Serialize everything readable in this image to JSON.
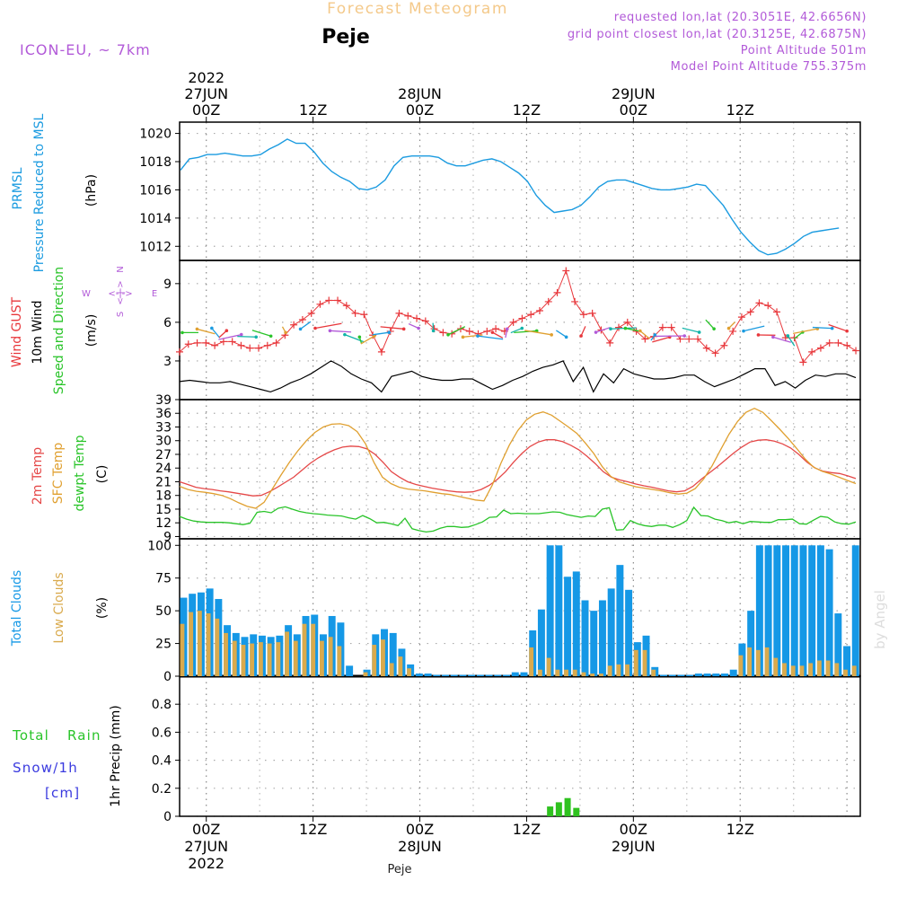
{
  "header": {
    "title": "Forecast Meteogram",
    "location": "Peje",
    "model": "ICON-EU, ~ 7km",
    "requested": "requested lon,lat (20.3051E, 42.6656N)",
    "grid_point": "grid point closest lon,lat (20.3125E, 42.6875N)",
    "point_altitude": "Point Altitude 501m",
    "model_altitude": "Model Point Altitude 755.375m"
  },
  "colors": {
    "pressure": "#1b9be0",
    "gust": "#e8373b",
    "wind": "#000000",
    "temp": "#e54848",
    "sfc": "#e0a030",
    "dewpt": "#29c429",
    "total_cloud": "#1598e6",
    "low_cloud": "#d9aa4d",
    "rain": "#2fc21f",
    "snow": "#3a3adf",
    "title": "#f4c98a",
    "meta": "#b25ad8",
    "grid": "#aaaaaa"
  },
  "time_axis": {
    "top_labels": [
      {
        "t": 3,
        "l1": "2022",
        "l2": "27JUN",
        "l3": "00Z"
      },
      {
        "t": 15,
        "l1": "",
        "l2": "",
        "l3": "12Z"
      },
      {
        "t": 27,
        "l1": "",
        "l2": "28JUN",
        "l3": "00Z"
      },
      {
        "t": 39,
        "l1": "",
        "l2": "",
        "l3": "12Z"
      },
      {
        "t": 51,
        "l1": "",
        "l2": "29JUN",
        "l3": "00Z"
      },
      {
        "t": 63,
        "l1": "",
        "l2": "",
        "l3": "12Z"
      }
    ],
    "bottom_labels": [
      {
        "t": 3,
        "l1": "00Z",
        "l2": "27JUN",
        "l3": "2022"
      },
      {
        "t": 15,
        "l1": "12Z",
        "l2": "",
        "l3": ""
      },
      {
        "t": 27,
        "l1": "00Z",
        "l2": "28JUN",
        "l3": ""
      },
      {
        "t": 39,
        "l1": "12Z",
        "l2": "",
        "l3": ""
      },
      {
        "t": 51,
        "l1": "00Z",
        "l2": "29JUN",
        "l3": ""
      },
      {
        "t": 63,
        "l1": "12Z",
        "l2": "",
        "l3": ""
      }
    ],
    "footer": "Peje"
  },
  "panels": {
    "pressure": {
      "label1": "PRMSL",
      "label2": "Pressure Reduced to MSL",
      "unit": "(hPa)"
    },
    "wind": {
      "label_gust": "Wind GUST",
      "label_wind": "10m Wind",
      "label_dir": "Speed and Direction",
      "unit": "(m/s)",
      "compass_n": "N",
      "compass_s": "S",
      "compass_w": "W",
      "compass_e": "E",
      "compass_mid": "<-|->"
    },
    "temp": {
      "label_t2m": "2m Temp",
      "label_sfc": "SFC Temp",
      "label_dew": "dewpt Temp",
      "unit": "(C)"
    },
    "clouds": {
      "label_total": "Total Clouds",
      "label_low": "Low Clouds",
      "unit": "(%)"
    },
    "precip": {
      "label_rain": "Total Rain",
      "label_snow": "Snow/1h",
      "label_cm": "[cm]",
      "unit": "1hr Precip (mm)"
    }
  },
  "watermark": "by Angel",
  "chart_data": [
    {
      "type": "line",
      "title": "PRMSL Pressure Reduced to MSL",
      "ylabel": "(hPa)",
      "x_hours_from_26JUN21Z": [
        0,
        1,
        2,
        3,
        4,
        5,
        6,
        7,
        8,
        9,
        10,
        11,
        12,
        13,
        14,
        15,
        16,
        17,
        18,
        19,
        20,
        21,
        22,
        23,
        24,
        25,
        26,
        27,
        28,
        29,
        30,
        31,
        32,
        33,
        34,
        35,
        36,
        37,
        38,
        39,
        40,
        41,
        42,
        43,
        44,
        45,
        46,
        47,
        48,
        49,
        50,
        51,
        52,
        53,
        54,
        55,
        56,
        57,
        58,
        59,
        60,
        61,
        62,
        63,
        64,
        65,
        66,
        67,
        68,
        69,
        70,
        71,
        72,
        73,
        74,
        75,
        76
      ],
      "ylim": [
        1011,
        1020.8
      ],
      "yticks": [
        1012,
        1014,
        1016,
        1018,
        1020
      ],
      "series": [
        {
          "values": [
            1017.4,
            1018.2,
            1018.3,
            1018.5,
            1018.5,
            1018.6,
            1018.5,
            1018.4,
            1018.4,
            1018.5,
            1018.9,
            1019.2,
            1019.6,
            1019.3,
            1019.3,
            1018.7,
            1017.9,
            1017.3,
            1016.9,
            1016.6,
            1016.1,
            1016.0,
            1016.2,
            1016.7,
            1017.7,
            1018.3,
            1018.4,
            1018.4,
            1018.4,
            1018.3,
            1017.9,
            1017.7,
            1017.7,
            1017.9,
            1018.1,
            1018.2,
            1018.0,
            1017.6,
            1017.2,
            1016.6,
            1015.6,
            1014.9,
            1014.4,
            1014.5,
            1014.6,
            1014.9,
            1015.5,
            1016.2,
            1016.6,
            1016.7,
            1016.7,
            1016.5,
            1016.3,
            1016.1,
            1016.0,
            1016.0,
            1016.1,
            1016.2,
            1016.4,
            1016.3,
            1015.6,
            1014.9,
            1013.9,
            1013.0,
            1012.3,
            1011.7,
            1011.4,
            1011.5,
            1011.8,
            1012.2,
            1012.7,
            1013.0,
            1013.1,
            1013.2,
            1013.3
          ]
        }
      ]
    },
    {
      "type": "line",
      "title": "Wind GUST / 10m Wind Speed and Direction",
      "ylabel": "(m/s)",
      "ylim": [
        0,
        10.8
      ],
      "yticks": [
        3,
        6,
        9
      ],
      "series": [
        {
          "name": "Wind GUST",
          "values": [
            3.7,
            4.3,
            4.4,
            4.4,
            4.2,
            4.5,
            4.5,
            4.2,
            4.0,
            4.0,
            4.2,
            4.4,
            5.0,
            5.8,
            6.2,
            6.7,
            7.4,
            7.7,
            7.7,
            7.3,
            6.7,
            6.6,
            5.0,
            3.7,
            5.3,
            6.7,
            6.5,
            6.3,
            6.1,
            5.5,
            5.2,
            5.1,
            5.5,
            5.3,
            5.1,
            5.3,
            5.5,
            5.3,
            6.0,
            6.3,
            6.6,
            6.9,
            7.6,
            8.3,
            10.0,
            7.6,
            6.6,
            6.7,
            5.4,
            4.4,
            5.6,
            6.0,
            5.3,
            4.7,
            4.9,
            5.6,
            5.6,
            4.7,
            4.7,
            4.7,
            4.0,
            3.6,
            4.2,
            5.3,
            6.4,
            6.8,
            7.5,
            7.3,
            6.8,
            4.8,
            4.8,
            2.9,
            3.7,
            4.0,
            4.4,
            4.4,
            4.2,
            3.8
          ]
        },
        {
          "name": "10m Wind",
          "values": [
            1.4,
            1.5,
            1.4,
            1.3,
            1.3,
            1.4,
            1.2,
            1.0,
            0.8,
            0.6,
            0.9,
            1.3,
            1.6,
            2.0,
            2.5,
            3.0,
            2.6,
            2.0,
            1.6,
            1.3,
            0.6,
            1.8,
            2.0,
            2.2,
            1.8,
            1.6,
            1.5,
            1.5,
            1.6,
            1.6,
            1.2,
            0.8,
            1.1,
            1.5,
            1.8,
            2.2,
            2.5,
            2.7,
            3.0,
            1.4,
            2.5,
            0.6,
            2.0,
            1.3,
            2.4,
            2.0,
            1.8,
            1.6,
            1.6,
            1.7,
            1.9,
            1.9,
            1.4,
            1.0,
            1.3,
            1.6,
            2.0,
            2.4,
            2.4,
            1.1,
            1.4,
            0.9,
            1.5,
            1.9,
            1.8,
            2.0,
            2.0,
            1.7
          ]
        }
      ]
    },
    {
      "type": "line",
      "title": "2m Temp / SFC Temp / dewpt Temp",
      "ylabel": "(C)",
      "ylim": [
        8.5,
        39
      ],
      "yticks": [
        9,
        12,
        15,
        18,
        21,
        24,
        27,
        30,
        33,
        36,
        39
      ],
      "series": [
        {
          "name": "2m Temp",
          "values": [
            21.0,
            20.4,
            19.8,
            19.5,
            19.3,
            19.0,
            18.8,
            18.5,
            18.2,
            17.9,
            18.0,
            18.8,
            19.8,
            20.9,
            22.0,
            23.5,
            25.0,
            26.2,
            27.2,
            28.0,
            28.6,
            28.8,
            28.7,
            28.2,
            27.0,
            25.2,
            23.2,
            22.0,
            21.0,
            20.4,
            20.0,
            19.6,
            19.3,
            19.0,
            18.8,
            18.7,
            18.8,
            19.3,
            20.2,
            21.5,
            23.2,
            25.3,
            27.2,
            28.7,
            29.7,
            30.2,
            30.2,
            29.8,
            29.0,
            28.0,
            26.6,
            25.0,
            23.2,
            22.0,
            21.4,
            21.0,
            20.5,
            20.1,
            19.8,
            19.4,
            19.0,
            18.8,
            19.0,
            20.0,
            21.5,
            22.9,
            24.3,
            25.8,
            27.3,
            28.6,
            29.7,
            30.1,
            30.2,
            29.9,
            29.3,
            28.4,
            27.0,
            25.3,
            24.0,
            23.3,
            23.0,
            22.8,
            22.3,
            21.7
          ]
        },
        {
          "name": "SFC Temp",
          "values": [
            20.0,
            19.3,
            18.9,
            18.7,
            18.4,
            18.0,
            17.3,
            16.4,
            15.6,
            15.2,
            16.5,
            19.5,
            22.5,
            25.3,
            27.8,
            30.0,
            31.8,
            33.0,
            33.6,
            33.7,
            33.3,
            32.0,
            29.3,
            25.2,
            22.0,
            20.6,
            19.8,
            19.4,
            19.2,
            19.0,
            18.7,
            18.4,
            18.2,
            17.8,
            17.4,
            17.0,
            16.8,
            20.3,
            25.0,
            29.0,
            32.2,
            34.5,
            35.8,
            36.3,
            35.6,
            34.3,
            33.0,
            31.6,
            29.5,
            27.2,
            24.3,
            22.2,
            21.0,
            20.4,
            19.9,
            19.6,
            19.3,
            19.0,
            18.6,
            18.3,
            18.5,
            19.5,
            21.6,
            24.5,
            28.0,
            31.4,
            34.2,
            36.2,
            37.1,
            36.2,
            34.4,
            32.5,
            30.5,
            28.3,
            26.0,
            24.2,
            23.3,
            22.7,
            22.0,
            21.3,
            20.6
          ]
        },
        {
          "name": "dewpt Temp",
          "values": [
            13.4,
            12.8,
            12.4,
            12.2,
            12.1,
            12.1,
            12.1,
            12.0,
            11.8,
            11.6,
            11.9,
            14.3,
            14.5,
            14.2,
            15.2,
            15.5,
            15.0,
            14.5,
            14.2,
            14.0,
            13.9,
            13.7,
            13.6,
            13.5,
            13.1,
            12.8,
            13.6,
            12.9,
            12.0,
            12.1,
            11.8,
            11.4,
            13.0,
            10.7,
            10.3,
            10.0,
            10.2,
            10.8,
            11.2,
            11.2,
            11.0,
            11.1,
            11.6,
            12.2,
            13.2,
            13.3,
            14.8,
            14.0,
            14.1,
            14.0,
            14.0,
            14.0,
            14.2,
            14.4,
            14.3,
            13.8,
            13.5,
            13.2,
            13.5,
            13.4,
            15.0,
            15.3,
            10.4,
            10.5,
            12.5,
            11.8,
            11.4,
            11.2,
            11.5,
            11.5,
            11.0,
            11.6,
            12.5,
            15.4,
            13.6,
            13.5,
            12.8,
            12.5,
            12.0,
            12.3,
            11.8,
            12.3,
            12.2,
            12.1,
            12.1,
            12.7,
            12.7,
            12.8,
            11.8,
            11.7,
            12.6,
            13.4,
            13.2,
            12.2,
            11.8,
            11.7,
            12.2
          ]
        }
      ]
    },
    {
      "type": "bar",
      "title": "Total Clouds / Low Clouds",
      "ylabel": "(%)",
      "ylim": [
        0,
        105
      ],
      "yticks": [
        0,
        25,
        50,
        75,
        100
      ],
      "series": [
        {
          "name": "Total Clouds",
          "values": [
            60,
            63,
            64,
            67,
            59,
            39,
            33,
            30,
            32,
            31,
            30,
            31,
            39,
            32,
            46,
            47,
            32,
            46,
            41,
            8,
            0,
            5,
            32,
            36,
            33,
            21,
            9,
            2,
            2,
            1,
            1,
            1,
            1,
            1,
            1,
            1,
            1,
            1,
            3,
            3,
            35,
            51,
            100,
            100,
            76,
            80,
            58,
            50,
            58,
            67,
            85,
            66,
            26,
            31,
            7,
            1,
            1,
            1,
            1,
            2,
            2,
            2,
            2,
            5,
            25,
            50,
            100,
            100,
            100,
            100,
            100,
            100,
            100,
            100,
            97,
            48,
            23,
            100
          ]
        },
        {
          "name": "Low Clouds",
          "values": [
            40,
            49,
            50,
            48,
            44,
            33,
            27,
            24,
            25,
            26,
            25,
            26,
            34,
            27,
            40,
            40,
            27,
            30,
            23,
            0,
            0,
            3,
            24,
            28,
            10,
            15,
            6,
            0,
            0,
            0,
            0,
            0,
            0,
            0,
            0,
            0,
            0,
            0,
            0,
            0,
            22,
            5,
            14,
            5,
            5,
            5,
            3,
            2,
            2,
            8,
            9,
            9,
            20,
            20,
            5,
            0,
            0,
            0,
            0,
            0,
            0,
            0,
            0,
            0,
            16,
            22,
            20,
            22,
            14,
            10,
            8,
            8,
            10,
            12,
            12,
            10,
            5,
            8
          ]
        }
      ]
    },
    {
      "type": "bar",
      "title": "1hr Precip",
      "ylabel": "1hr Precip (mm)",
      "ylim": [
        0,
        1.0
      ],
      "yticks": [
        0,
        0.2,
        0.4,
        0.6,
        0.8
      ],
      "series": [
        {
          "name": "Total Rain",
          "values": [
            0,
            0,
            0,
            0,
            0,
            0,
            0,
            0,
            0,
            0,
            0,
            0,
            0,
            0,
            0,
            0,
            0,
            0,
            0,
            0,
            0,
            0,
            0,
            0,
            0,
            0,
            0,
            0,
            0,
            0,
            0,
            0,
            0,
            0,
            0,
            0,
            0,
            0,
            0,
            0,
            0,
            0,
            0.07,
            0.1,
            0.13,
            0.06,
            0,
            0,
            0,
            0,
            0,
            0,
            0,
            0,
            0,
            0,
            0,
            0,
            0,
            0,
            0,
            0,
            0,
            0,
            0,
            0,
            0,
            0,
            0,
            0,
            0,
            0,
            0,
            0,
            0,
            0,
            0,
            0
          ]
        }
      ]
    }
  ]
}
